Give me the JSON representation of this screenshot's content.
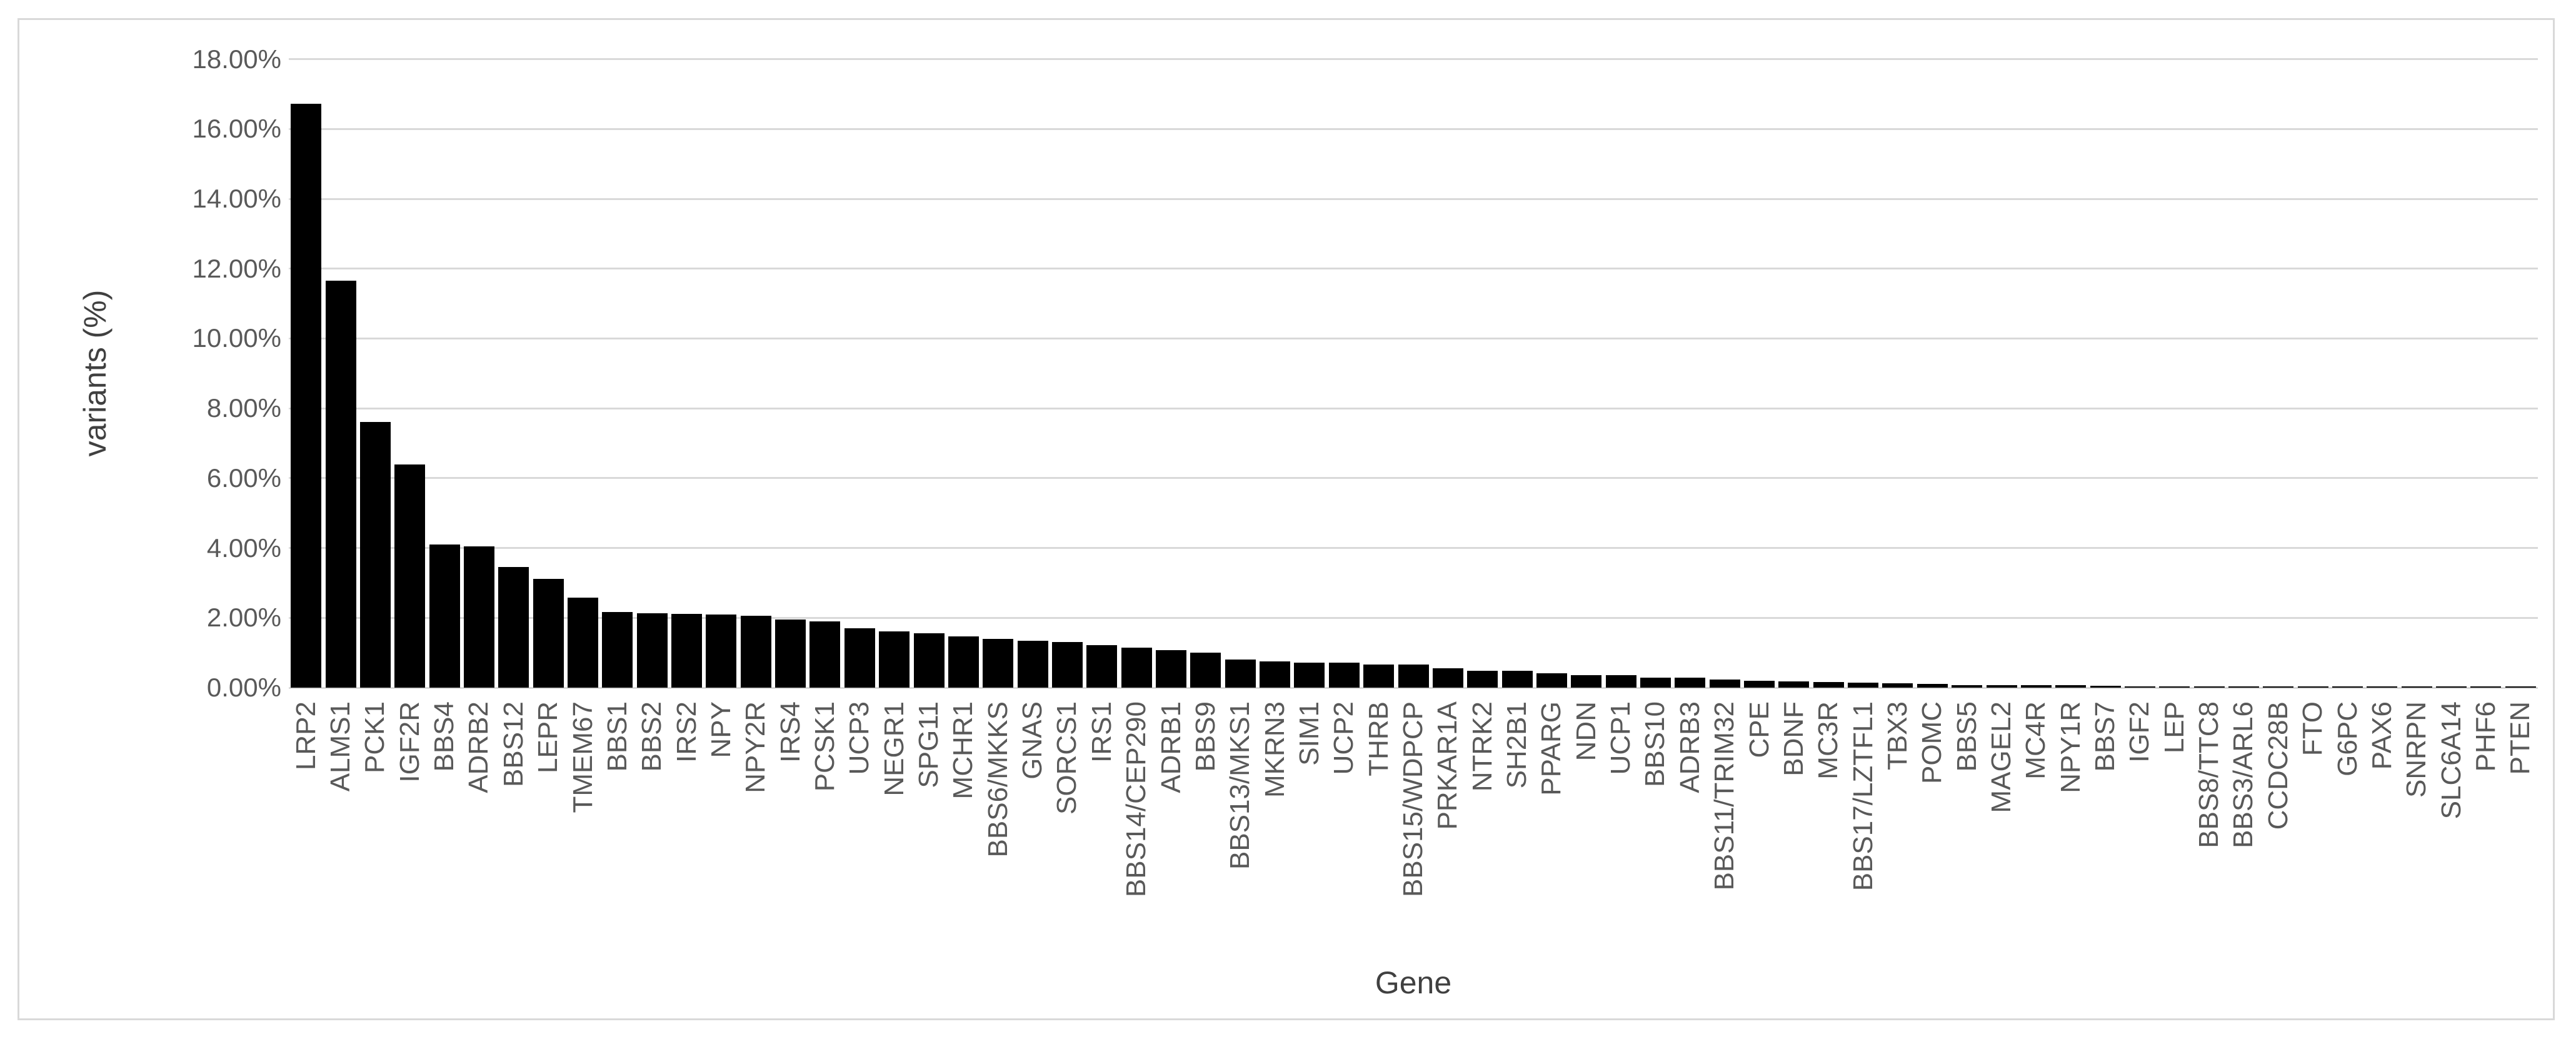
{
  "chart_data": {
    "type": "bar",
    "title": "",
    "xlabel": "Gene",
    "ylabel": "variants (%)",
    "categories": [
      "LRP2",
      "ALMS1",
      "PCK1",
      "IGF2R",
      "BBS4",
      "ADRB2",
      "BBS12",
      "LEPR",
      "TMEM67",
      "BBS1",
      "BBS2",
      "IRS2",
      "NPY",
      "NPY2R",
      "IRS4",
      "PCSK1",
      "UCP3",
      "NEGR1",
      "SPG11",
      "MCHR1",
      "BBS6/MKKS",
      "GNAS",
      "SORCS1",
      "IRS1",
      "BBS14/CEP290",
      "ADRB1",
      "BBS9",
      "BBS13/MKS1",
      "MKRN3",
      "SIM1",
      "UCP2",
      "THRB",
      "BBS15/WDPCP",
      "PRKAR1A",
      "NTRK2",
      "SH2B1",
      "PPARG",
      "NDN",
      "UCP1",
      "BBS10",
      "ADRB3",
      "BBS11/TRIM32",
      "CPE",
      "BDNF",
      "MC3R",
      "BBS17/LZTFL1",
      "TBX3",
      "POMC",
      "BBS5",
      "MAGEL2",
      "MC4R",
      "NPY1R",
      "BBS7",
      "IGF2",
      "LEP",
      "BBS8/TTC8",
      "BBS3/ARL6",
      "CCDC28B",
      "FTO",
      "G6PC",
      "PAX6",
      "SNRPN",
      "SLC6A14",
      "PHF6",
      "PTEN"
    ],
    "values": [
      16.73,
      11.66,
      7.61,
      6.39,
      4.1,
      4.04,
      3.46,
      3.12,
      2.58,
      2.16,
      2.13,
      2.11,
      2.09,
      2.06,
      1.96,
      1.9,
      1.7,
      1.62,
      1.55,
      1.46,
      1.4,
      1.34,
      1.3,
      1.22,
      1.15,
      1.08,
      1.0,
      0.81,
      0.76,
      0.72,
      0.72,
      0.67,
      0.67,
      0.55,
      0.49,
      0.49,
      0.42,
      0.35,
      0.35,
      0.29,
      0.29,
      0.23,
      0.19,
      0.18,
      0.16,
      0.14,
      0.12,
      0.1,
      0.08,
      0.07,
      0.07,
      0.07,
      0.05,
      0.03,
      0.03,
      0.03,
      0.03,
      0.03,
      0.03,
      0.03,
      0.03,
      0.03,
      0.03,
      0.03,
      0.03
    ],
    "y_ticks": [
      "0.00%",
      "2.00%",
      "4.00%",
      "6.00%",
      "8.00%",
      "10.00%",
      "12.00%",
      "14.00%",
      "16.00%",
      "18.00%"
    ],
    "ylim": [
      0,
      18
    ],
    "y_tick_step": 2,
    "grid": "horizontal",
    "legend": "none",
    "bar_color": "#000000",
    "gridline_color": "#D9D9D9",
    "axis_text_color": "#595959",
    "axis_title_color": "#404040",
    "chart_border_color": "#D9D9D9",
    "background_color": "#FFFFFF"
  }
}
